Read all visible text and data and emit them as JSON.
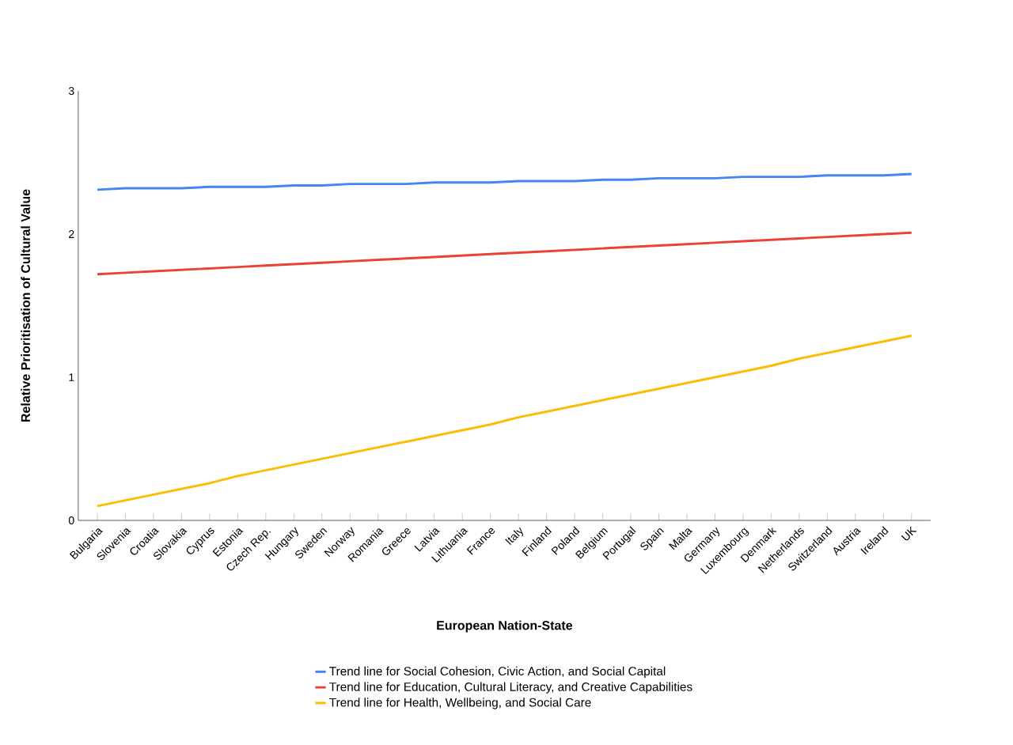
{
  "chart_data": {
    "type": "line",
    "xlabel": "European Nation-State",
    "ylabel": "Relative Prioritisation of Cultural Value",
    "categories": [
      "Bulgaria",
      "Slovenia",
      "Croatia",
      "Slovakia",
      "Cyprus",
      "Estonia",
      "Czech Rep.",
      "Hungary",
      "Sweden",
      "Norway",
      "Romania",
      "Greece",
      "Latvia",
      "Lithuania",
      "France",
      "Italy",
      "Finland",
      "Poland",
      "Belgium",
      "Portugal",
      "Spain",
      "Malta",
      "Germany",
      "Luxembourg",
      "Denmark",
      "Netherlands",
      "Switzerland",
      "Austria",
      "Ireland",
      "UK"
    ],
    "series": [
      {
        "name": "Trend line for Social Cohesion, Civic Action, and Social Capital",
        "color": "#4285f4",
        "values": [
          2.31,
          2.32,
          2.32,
          2.32,
          2.33,
          2.33,
          2.33,
          2.34,
          2.34,
          2.35,
          2.35,
          2.35,
          2.36,
          2.36,
          2.36,
          2.37,
          2.37,
          2.37,
          2.38,
          2.38,
          2.39,
          2.39,
          2.39,
          2.4,
          2.4,
          2.4,
          2.41,
          2.41,
          2.41,
          2.42
        ]
      },
      {
        "name": "Trend line for Education, Cultural Literacy, and Creative Capabilities",
        "color": "#ea4335",
        "values": [
          1.72,
          1.73,
          1.74,
          1.75,
          1.76,
          1.77,
          1.78,
          1.79,
          1.8,
          1.81,
          1.82,
          1.83,
          1.84,
          1.85,
          1.86,
          1.87,
          1.88,
          1.89,
          1.9,
          1.91,
          1.92,
          1.93,
          1.94,
          1.95,
          1.96,
          1.97,
          1.98,
          1.99,
          2.0,
          2.01
        ]
      },
      {
        "name": "Trend line for Health, Wellbeing, and Social Care",
        "color": "#fbbc04",
        "values": [
          0.1,
          0.14,
          0.18,
          0.22,
          0.26,
          0.31,
          0.35,
          0.39,
          0.43,
          0.47,
          0.51,
          0.55,
          0.59,
          0.63,
          0.67,
          0.72,
          0.76,
          0.8,
          0.84,
          0.88,
          0.92,
          0.96,
          1.0,
          1.04,
          1.08,
          1.13,
          1.17,
          1.21,
          1.25,
          1.29
        ]
      }
    ],
    "ylim": [
      0,
      3
    ],
    "yticks": [
      0,
      1,
      2,
      3
    ],
    "legend": "bottom",
    "grid": false,
    "marker": "none",
    "line_style": "solid"
  }
}
